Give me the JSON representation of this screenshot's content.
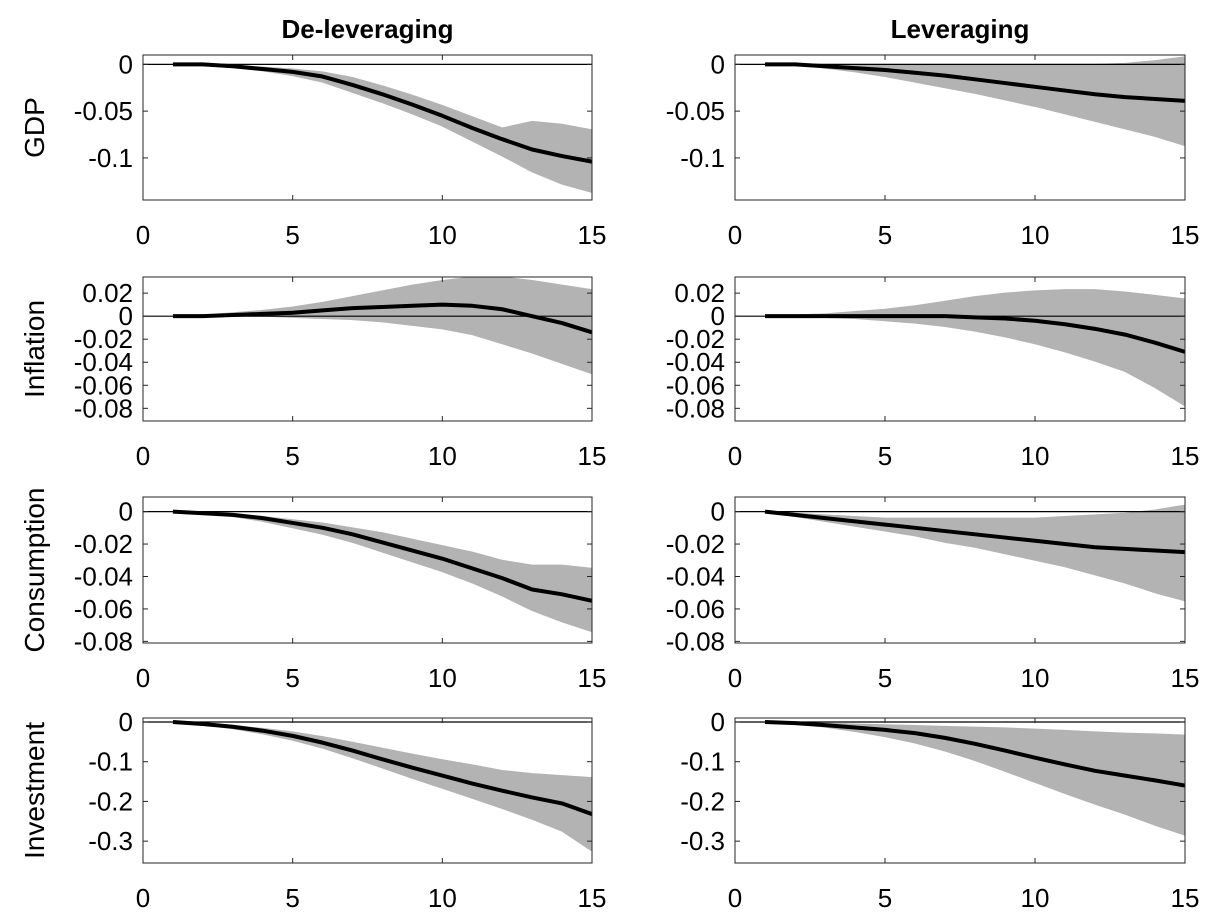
{
  "chart_data": [
    {
      "type": "line",
      "title": "De-leveraging",
      "ylabel": "GDP",
      "x": [
        1,
        2,
        3,
        4,
        5,
        6,
        7,
        8,
        9,
        10,
        11,
        12,
        13,
        14,
        15
      ],
      "series": [
        {
          "color": "#000000",
          "values": [
            0,
            0,
            -0.002,
            -0.005,
            -0.008,
            -0.013,
            -0.022,
            -0.032,
            -0.043,
            -0.055,
            -0.068,
            -0.08,
            -0.091,
            -0.098,
            -0.104
          ]
        }
      ],
      "band": {
        "color": "#b3b3b3",
        "lower": [
          0,
          0,
          -0.003,
          -0.007,
          -0.012,
          -0.019,
          -0.03,
          -0.041,
          -0.053,
          -0.066,
          -0.082,
          -0.098,
          -0.115,
          -0.128,
          -0.137
        ],
        "upper": [
          0,
          0,
          -0.001,
          -0.003,
          -0.005,
          -0.008,
          -0.014,
          -0.023,
          -0.033,
          -0.044,
          -0.056,
          -0.068,
          -0.061,
          -0.064,
          -0.07
        ]
      },
      "xlim": [
        0,
        15
      ],
      "xticks": [
        0,
        5,
        10,
        15
      ],
      "ylim": [
        -0.145,
        0.01
      ],
      "yticks": [
        0,
        -0.05,
        -0.1
      ]
    },
    {
      "type": "line",
      "title": "Leveraging",
      "x": [
        1,
        2,
        3,
        4,
        5,
        6,
        7,
        8,
        9,
        10,
        11,
        12,
        13,
        14,
        15
      ],
      "series": [
        {
          "color": "#000000",
          "values": [
            0,
            0,
            -0.002,
            -0.004,
            -0.006,
            -0.009,
            -0.012,
            -0.016,
            -0.02,
            -0.024,
            -0.028,
            -0.032,
            -0.035,
            -0.037,
            -0.039
          ]
        }
      ],
      "band": {
        "color": "#b3b3b3",
        "lower": [
          0,
          0,
          -0.004,
          -0.008,
          -0.013,
          -0.019,
          -0.025,
          -0.031,
          -0.038,
          -0.045,
          -0.053,
          -0.061,
          -0.069,
          -0.077,
          -0.087
        ],
        "upper": [
          0,
          0,
          0,
          0,
          0,
          0,
          0,
          0,
          0,
          0,
          0,
          0,
          0.001,
          0.004,
          0.008
        ]
      },
      "xlim": [
        0,
        15
      ],
      "xticks": [
        0,
        5,
        10,
        15
      ],
      "ylim": [
        -0.145,
        0.01
      ],
      "yticks": [
        0,
        -0.05,
        -0.1
      ]
    },
    {
      "type": "line",
      "ylabel": "Inflation",
      "x": [
        1,
        2,
        3,
        4,
        5,
        6,
        7,
        8,
        9,
        10,
        11,
        12,
        13,
        14,
        15
      ],
      "series": [
        {
          "color": "#000000",
          "values": [
            0,
            0,
            0.001,
            0.002,
            0.003,
            0.005,
            0.007,
            0.008,
            0.009,
            0.01,
            0.009,
            0.006,
            0,
            -0.006,
            -0.014
          ]
        }
      ],
      "band": {
        "color": "#b3b3b3",
        "lower": [
          0,
          0,
          0,
          0,
          -0.001,
          -0.002,
          -0.003,
          -0.005,
          -0.008,
          -0.011,
          -0.016,
          -0.024,
          -0.032,
          -0.041,
          -0.05
        ],
        "upper": [
          0,
          0.001,
          0.003,
          0.005,
          0.008,
          0.012,
          0.017,
          0.022,
          0.027,
          0.031,
          0.034,
          0.034,
          0.031,
          0.027,
          0.023
        ]
      },
      "xlim": [
        0,
        15
      ],
      "xticks": [
        0,
        5,
        10,
        15
      ],
      "ylim": [
        -0.091,
        0.034
      ],
      "yticks": [
        0.02,
        0,
        -0.02,
        -0.04,
        -0.06,
        -0.08
      ]
    },
    {
      "type": "line",
      "x": [
        1,
        2,
        3,
        4,
        5,
        6,
        7,
        8,
        9,
        10,
        11,
        12,
        13,
        14,
        15
      ],
      "series": [
        {
          "color": "#000000",
          "values": [
            0,
            0,
            0,
            0,
            0,
            0,
            0,
            -0.001,
            -0.002,
            -0.004,
            -0.007,
            -0.011,
            -0.016,
            -0.023,
            -0.031
          ]
        }
      ],
      "band": {
        "color": "#b3b3b3",
        "lower": [
          0,
          0,
          -0.001,
          -0.002,
          -0.004,
          -0.006,
          -0.009,
          -0.013,
          -0.018,
          -0.024,
          -0.031,
          -0.039,
          -0.048,
          -0.062,
          -0.078
        ],
        "upper": [
          0,
          0.001,
          0.002,
          0.004,
          0.006,
          0.009,
          0.013,
          0.017,
          0.02,
          0.022,
          0.023,
          0.023,
          0.021,
          0.018,
          0.015
        ]
      },
      "xlim": [
        0,
        15
      ],
      "xticks": [
        0,
        5,
        10,
        15
      ],
      "ylim": [
        -0.091,
        0.034
      ],
      "yticks": [
        0.02,
        0,
        -0.02,
        -0.04,
        -0.06,
        -0.08
      ]
    },
    {
      "type": "line",
      "ylabel": "Consumption",
      "x": [
        1,
        2,
        3,
        4,
        5,
        6,
        7,
        8,
        9,
        10,
        11,
        12,
        13,
        14,
        15
      ],
      "series": [
        {
          "color": "#000000",
          "values": [
            0,
            -0.001,
            -0.002,
            -0.004,
            -0.007,
            -0.01,
            -0.014,
            -0.019,
            -0.024,
            -0.029,
            -0.035,
            -0.041,
            -0.048,
            -0.051,
            -0.055
          ]
        }
      ],
      "band": {
        "color": "#b3b3b3",
        "lower": [
          0,
          -0.001,
          -0.003,
          -0.006,
          -0.01,
          -0.014,
          -0.019,
          -0.025,
          -0.031,
          -0.037,
          -0.044,
          -0.052,
          -0.061,
          -0.068,
          -0.074
        ],
        "upper": [
          0,
          -0.001,
          -0.002,
          -0.003,
          -0.005,
          -0.007,
          -0.01,
          -0.013,
          -0.017,
          -0.021,
          -0.025,
          -0.03,
          -0.033,
          -0.033,
          -0.035
        ]
      },
      "xlim": [
        0,
        15
      ],
      "xticks": [
        0,
        5,
        10,
        15
      ],
      "ylim": [
        -0.081,
        0.009
      ],
      "yticks": [
        0,
        -0.02,
        -0.04,
        -0.06,
        -0.08
      ]
    },
    {
      "type": "line",
      "x": [
        1,
        2,
        3,
        4,
        5,
        6,
        7,
        8,
        9,
        10,
        11,
        12,
        13,
        14,
        15
      ],
      "series": [
        {
          "color": "#000000",
          "values": [
            0,
            -0.002,
            -0.004,
            -0.006,
            -0.008,
            -0.01,
            -0.012,
            -0.014,
            -0.016,
            -0.018,
            -0.02,
            -0.022,
            -0.023,
            -0.024,
            -0.025
          ]
        }
      ],
      "band": {
        "color": "#b3b3b3",
        "lower": [
          0,
          -0.003,
          -0.006,
          -0.009,
          -0.012,
          -0.015,
          -0.019,
          -0.022,
          -0.026,
          -0.03,
          -0.034,
          -0.039,
          -0.044,
          -0.05,
          -0.055
        ],
        "upper": [
          0,
          -0.001,
          -0.002,
          -0.003,
          -0.004,
          -0.004,
          -0.004,
          -0.004,
          -0.004,
          -0.004,
          -0.003,
          -0.002,
          -0.001,
          0.001,
          0.004
        ]
      },
      "xlim": [
        0,
        15
      ],
      "xticks": [
        0,
        5,
        10,
        15
      ],
      "ylim": [
        -0.081,
        0.009
      ],
      "yticks": [
        0,
        -0.02,
        -0.04,
        -0.06,
        -0.08
      ]
    },
    {
      "type": "line",
      "ylabel": "Investment",
      "x": [
        1,
        2,
        3,
        4,
        5,
        6,
        7,
        8,
        9,
        10,
        11,
        12,
        13,
        14,
        15
      ],
      "series": [
        {
          "color": "#000000",
          "values": [
            0,
            -0.005,
            -0.012,
            -0.022,
            -0.035,
            -0.052,
            -0.072,
            -0.094,
            -0.115,
            -0.135,
            -0.155,
            -0.173,
            -0.19,
            -0.205,
            -0.232
          ]
        }
      ],
      "band": {
        "color": "#b3b3b3",
        "lower": [
          0,
          -0.007,
          -0.017,
          -0.03,
          -0.046,
          -0.066,
          -0.09,
          -0.116,
          -0.142,
          -0.167,
          -0.192,
          -0.218,
          -0.245,
          -0.275,
          -0.325
        ],
        "upper": [
          0,
          -0.004,
          -0.009,
          -0.016,
          -0.025,
          -0.037,
          -0.051,
          -0.066,
          -0.081,
          -0.095,
          -0.108,
          -0.122,
          -0.13,
          -0.135,
          -0.14
        ]
      },
      "xlim": [
        0,
        15
      ],
      "xticks": [
        0,
        5,
        10,
        15
      ],
      "ylim": [
        -0.355,
        0.01
      ],
      "yticks": [
        0,
        -0.1,
        -0.2,
        -0.3
      ]
    },
    {
      "type": "line",
      "x": [
        1,
        2,
        3,
        4,
        5,
        6,
        7,
        8,
        9,
        10,
        11,
        12,
        13,
        14,
        15
      ],
      "series": [
        {
          "color": "#000000",
          "values": [
            0,
            -0.003,
            -0.008,
            -0.014,
            -0.02,
            -0.028,
            -0.04,
            -0.055,
            -0.072,
            -0.09,
            -0.107,
            -0.123,
            -0.135,
            -0.147,
            -0.16
          ]
        }
      ],
      "band": {
        "color": "#b3b3b3",
        "lower": [
          0,
          -0.005,
          -0.013,
          -0.024,
          -0.037,
          -0.053,
          -0.073,
          -0.097,
          -0.124,
          -0.152,
          -0.18,
          -0.207,
          -0.232,
          -0.26,
          -0.285
        ],
        "upper": [
          0,
          -0.001,
          -0.003,
          -0.005,
          -0.007,
          -0.009,
          -0.011,
          -0.013,
          -0.015,
          -0.018,
          -0.021,
          -0.025,
          -0.028,
          -0.03,
          -0.033
        ]
      },
      "xlim": [
        0,
        15
      ],
      "xticks": [
        0,
        5,
        10,
        15
      ],
      "ylim": [
        -0.355,
        0.01
      ],
      "yticks": [
        0,
        -0.1,
        -0.2,
        -0.3
      ]
    }
  ]
}
